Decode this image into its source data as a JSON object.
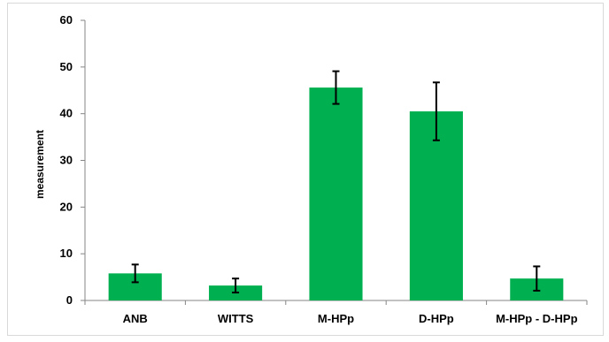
{
  "chart_data": {
    "type": "bar",
    "categories": [
      "ANB",
      "WITTS",
      "M-HPp",
      "D-HPp",
      "M-HPp - D-HPp"
    ],
    "series": [
      {
        "values": [
          5.8,
          3.2,
          45.6,
          40.5,
          4.7
        ],
        "error": [
          1.9,
          1.5,
          3.5,
          6.2,
          2.6
        ]
      }
    ],
    "title": "",
    "xlabel": "",
    "ylabel": "measurement",
    "ylim": [
      0,
      60
    ],
    "yticks": [
      0,
      10,
      20,
      30,
      40,
      50,
      60
    ],
    "grid": false,
    "legend": "none",
    "colors": {
      "bar": "#00b050",
      "axis": "#868686",
      "error_bar": "#000000",
      "border": "#d9d9d9"
    }
  }
}
